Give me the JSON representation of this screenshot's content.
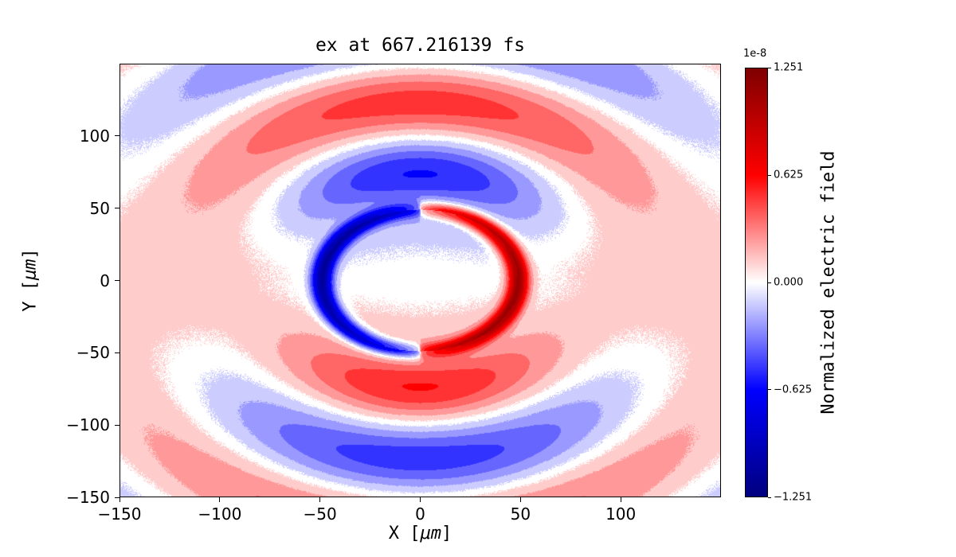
{
  "figure": {
    "background": "#ffffff"
  },
  "chart_data": {
    "type": "heatmap",
    "title": "ex at 667.216139 fs",
    "xlabel": "X [μm]",
    "ylabel": "Y [μm]",
    "xlabel_parts": {
      "pre": "X [",
      "unit": "μm",
      "post": "]"
    },
    "ylabel_parts": {
      "pre": "Y [",
      "unit": "μm",
      "post": "]"
    },
    "xlim": [
      -150,
      150
    ],
    "ylim": [
      -150,
      150
    ],
    "xticks": [
      -150,
      -100,
      -50,
      0,
      50,
      100
    ],
    "yticks": [
      -150,
      -100,
      -50,
      0,
      50,
      100
    ],
    "xtick_labels": [
      "−150",
      "−100",
      "−50",
      "0",
      "50",
      "100"
    ],
    "ytick_labels": [
      "−150",
      "−100",
      "−50",
      "0",
      "50",
      "100"
    ],
    "grid": false,
    "colormap": {
      "name": "seismic",
      "stops": [
        "#00007f",
        "#0000ff",
        "#ffffff",
        "#ff0000",
        "#7f0000"
      ],
      "positions": [
        0,
        0.25,
        0.5,
        0.75,
        1
      ]
    },
    "colorbar": {
      "label": "Normalized electric field",
      "offset_label": "1e-8",
      "tick_values": [
        1.251,
        0.625,
        0,
        -0.625,
        -1.251
      ],
      "tick_labels": [
        "1.251",
        "0.625",
        "0.000",
        "−0.625",
        "−1.251"
      ],
      "vmin": -1.251,
      "vmax": 1.251,
      "units_scale": 1e-08,
      "position": "right"
    },
    "contour_levels": 21,
    "field_model": {
      "description": "Snapshot of ex field: thin deep-blue crescent (negative) on the left and deep-red crescent (positive) on the right of a circle of radius ~49 μm centered at origin; faint blue upper-interior and faint pink lower-interior with white band along y=0; outside the circle alternating lobes above/below (blue lobe above ~y=65, red band above ~y=120, red lobe below ~y=-70, blue arcs below ~y=-110, pale blue corner patches) modulated by sin(theta); faint red fringes at left/right edges near y=0. Field values in units of 1e-8.",
      "crescent": {
        "radius": 49,
        "width": 5.5,
        "amplitude": 1.1,
        "angular_power": 0.35
      },
      "interior": {
        "amplitude": -0.22,
        "radial_power": 1.5
      },
      "lobes": {
        "amplitude": -0.58,
        "wavelength": 100,
        "fade_sigma": 200
      },
      "edge_fringes": {
        "amplitude": 0.13,
        "angular_power": 2.5,
        "half_wavelength": 150
      },
      "noise": {
        "amplitude": 0.06,
        "zero_band": 0.18
      }
    }
  }
}
